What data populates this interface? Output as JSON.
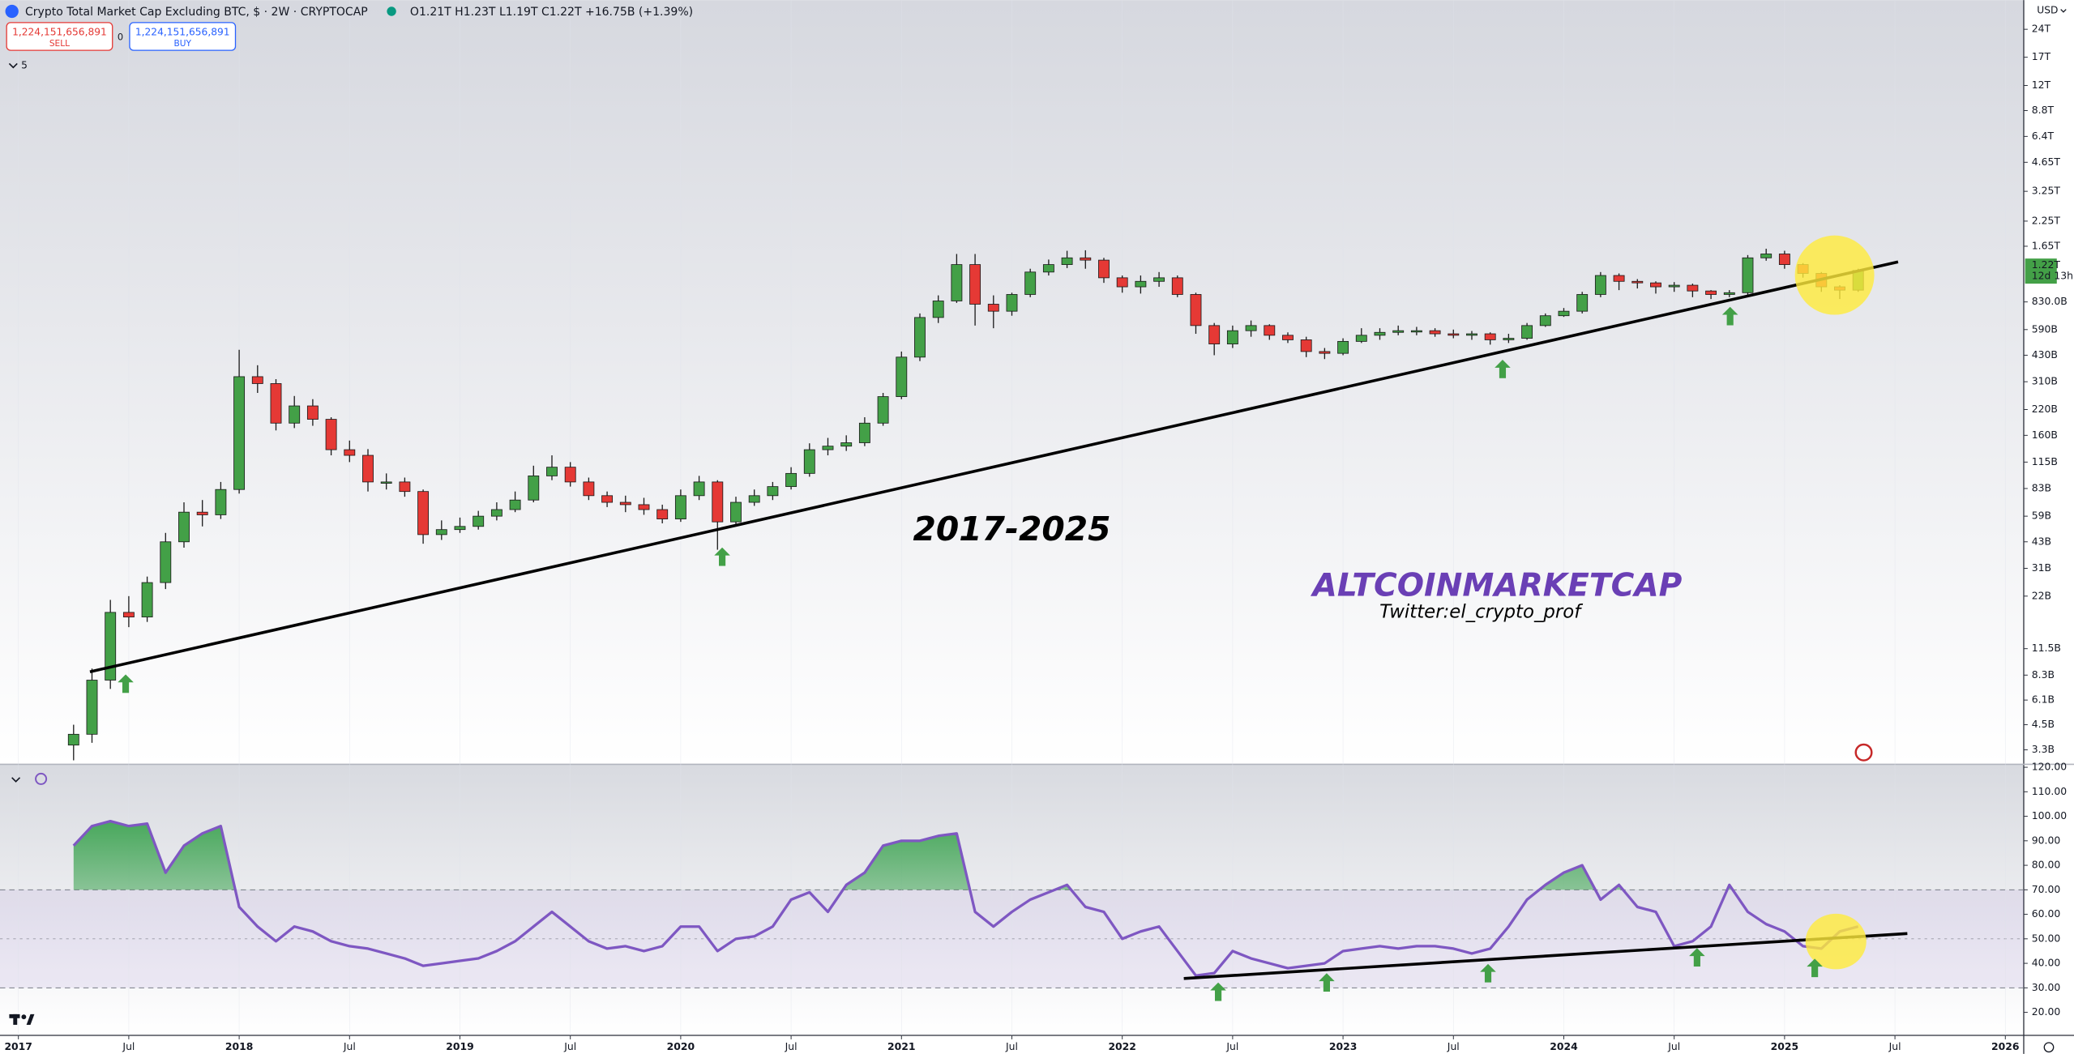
{
  "header": {
    "ohlc_legend": "O1.21T H1.23T L1.19T C1.22T +16.75B (+1.39%)",
    "collapse_count": "5",
    "currency": "USD"
  },
  "order_panel": {
    "sell_price": "1,224,151,656,891",
    "sell_label": "SELL",
    "spread": "0",
    "buy_price": "1,224,151,656,891",
    "buy_label": "BUY"
  },
  "chart_data": [
    {
      "type": "candlestick",
      "title": "Crypto Total Market Cap Excluding BTC, $ · 2W · CRYPTOCAP",
      "annotations": [
        "2017-2025",
        "ALTCOINMARKETCAP",
        "Twitter:el_crypto_prof"
      ],
      "last_price_label": "1.22T",
      "countdown": "12d 13h",
      "log_scale": true,
      "up_color": "#43a047",
      "down_color": "#e53935",
      "xlim": [
        "2016-12",
        "2026-02"
      ],
      "xticks": [
        {
          "value": "2017-01",
          "label": "2017"
        },
        {
          "value": "2017-07",
          "label": "Jul"
        },
        {
          "value": "2018-01",
          "label": "2018"
        },
        {
          "value": "2018-07",
          "label": "Jul"
        },
        {
          "value": "2019-01",
          "label": "2019"
        },
        {
          "value": "2019-07",
          "label": "Jul"
        },
        {
          "value": "2020-01",
          "label": "2020"
        },
        {
          "value": "2020-07",
          "label": "Jul"
        },
        {
          "value": "2021-01",
          "label": "2021"
        },
        {
          "value": "2021-07",
          "label": "Jul"
        },
        {
          "value": "2022-01",
          "label": "2022"
        },
        {
          "value": "2022-07",
          "label": "Jul"
        },
        {
          "value": "2023-01",
          "label": "2023"
        },
        {
          "value": "2023-07",
          "label": "Jul"
        },
        {
          "value": "2024-01",
          "label": "2024"
        },
        {
          "value": "2024-07",
          "label": "Jul"
        },
        {
          "value": "2025-01",
          "label": "2025"
        },
        {
          "value": "2025-07",
          "label": "Jul"
        },
        {
          "value": "2026-01",
          "label": "2026"
        }
      ],
      "ylim": [
        2.76,
        34400
      ],
      "yticks": [
        {
          "value": 24000,
          "label": "24T"
        },
        {
          "value": 17000,
          "label": "17T"
        },
        {
          "value": 12000,
          "label": "12T"
        },
        {
          "value": 8800,
          "label": "8.8T"
        },
        {
          "value": 6400,
          "label": "6.4T"
        },
        {
          "value": 4650,
          "label": "4.65T"
        },
        {
          "value": 3250,
          "label": "3.25T"
        },
        {
          "value": 2250,
          "label": "2.25T"
        },
        {
          "value": 1650,
          "label": "1.65T"
        },
        {
          "value": 830,
          "label": "830.0B"
        },
        {
          "value": 590,
          "label": "590B"
        },
        {
          "value": 430,
          "label": "430B"
        },
        {
          "value": 310,
          "label": "310B"
        },
        {
          "value": 220,
          "label": "220B"
        },
        {
          "value": 160,
          "label": "160B"
        },
        {
          "value": 115,
          "label": "115B"
        },
        {
          "value": 83,
          "label": "83B"
        },
        {
          "value": 59,
          "label": "59B"
        },
        {
          "value": 43,
          "label": "43B"
        },
        {
          "value": 31,
          "label": "31B"
        },
        {
          "value": 22,
          "label": "22B"
        },
        {
          "value": 11.5,
          "label": "11.5B"
        },
        {
          "value": 8.3,
          "label": "8.3B"
        },
        {
          "value": 6.1,
          "label": "6.1B"
        },
        {
          "value": 4.5,
          "label": "4.5B"
        },
        {
          "value": 3.3,
          "label": "3.3B"
        }
      ],
      "x": [
        "2017-04",
        "2017-05",
        "2017-06",
        "2017-07",
        "2017-08",
        "2017-09",
        "2017-10",
        "2017-11",
        "2017-12",
        "2018-01",
        "2018-02",
        "2018-03",
        "2018-04",
        "2018-05",
        "2018-06",
        "2018-07",
        "2018-08",
        "2018-09",
        "2018-10",
        "2018-11",
        "2018-12",
        "2019-01",
        "2019-02",
        "2019-03",
        "2019-04",
        "2019-05",
        "2019-06",
        "2019-07",
        "2019-08",
        "2019-09",
        "2019-10",
        "2019-11",
        "2019-12",
        "2020-01",
        "2020-02",
        "2020-03",
        "2020-04",
        "2020-05",
        "2020-06",
        "2020-07",
        "2020-08",
        "2020-09",
        "2020-10",
        "2020-11",
        "2020-12",
        "2021-01",
        "2021-02",
        "2021-03",
        "2021-04",
        "2021-05",
        "2021-06",
        "2021-07",
        "2021-08",
        "2021-09",
        "2021-10",
        "2021-11",
        "2021-12",
        "2022-01",
        "2022-02",
        "2022-03",
        "2022-04",
        "2022-05",
        "2022-06",
        "2022-07",
        "2022-08",
        "2022-09",
        "2022-10",
        "2022-11",
        "2022-12",
        "2023-01",
        "2023-02",
        "2023-03",
        "2023-04",
        "2023-05",
        "2023-06",
        "2023-07",
        "2023-08",
        "2023-09",
        "2023-10",
        "2023-11",
        "2023-12",
        "2024-01",
        "2024-02",
        "2024-03",
        "2024-04",
        "2024-05",
        "2024-06",
        "2024-07",
        "2024-08",
        "2024-09",
        "2024-10",
        "2024-11",
        "2024-12",
        "2025-01",
        "2025-02",
        "2025-03",
        "2025-04",
        "2025-05"
      ],
      "open": [
        3.5,
        4.0,
        7.8,
        18,
        17,
        26,
        43,
        62,
        60,
        82,
        330,
        303,
        186,
        230,
        195,
        134,
        125,
        90,
        90,
        80,
        47,
        50,
        52,
        59,
        64,
        72,
        97,
        108,
        90,
        76,
        70,
        68,
        64,
        57,
        76,
        90,
        55,
        70,
        76,
        85,
        100,
        134,
        140,
        146,
        186,
        258,
        420,
        685,
        840,
        1316,
        807,
        740,
        910,
        1200,
        1316,
        1430,
        1390,
        1118,
        1000,
        1070,
        1118,
        910,
        620,
        494,
        582,
        620,
        550,
        520,
        450,
        440,
        510,
        550,
        570,
        582,
        582,
        560,
        550,
        560,
        520,
        530,
        620,
        700,
        740,
        910,
        1150,
        1070,
        1050,
        1000,
        1020,
        950,
        910,
        930,
        1430,
        1500,
        1316,
        1180,
        1000,
        960
      ],
      "high": [
        4.5,
        9,
        21,
        22,
        28,
        48,
        70,
        72,
        90,
        460,
        380,
        320,
        260,
        250,
        200,
        150,
        135,
        100,
        95,
        82,
        56,
        58,
        63,
        70,
        80,
        110,
        125,
        115,
        95,
        80,
        76,
        74,
        68,
        82,
        97,
        92,
        75,
        82,
        90,
        108,
        145,
        155,
        160,
        200,
        270,
        450,
        720,
        900,
        1500,
        1500,
        900,
        930,
        1250,
        1400,
        1560,
        1570,
        1430,
        1150,
        1150,
        1200,
        1150,
        930,
        640,
        620,
        660,
        630,
        570,
        540,
        470,
        530,
        600,
        600,
        620,
        610,
        600,
        590,
        580,
        570,
        560,
        640,
        720,
        770,
        940,
        1200,
        1180,
        1100,
        1070,
        1060,
        1040,
        960,
        960,
        1480,
        1600,
        1560,
        1340,
        1200,
        1020,
        1250
      ],
      "low": [
        2.9,
        3.6,
        7.0,
        15,
        16,
        24,
        40,
        52,
        57,
        78,
        270,
        170,
        175,
        180,
        125,
        115,
        80,
        82,
        75,
        42,
        44,
        48,
        50,
        56,
        62,
        70,
        92,
        85,
        72,
        66,
        62,
        60,
        54,
        55,
        72,
        39,
        52,
        67,
        72,
        82,
        96,
        125,
        132,
        140,
        180,
        250,
        400,
        640,
        820,
        620,
        600,
        700,
        880,
        1150,
        1260,
        1250,
        1050,
        930,
        920,
        1000,
        880,
        560,
        430,
        470,
        540,
        520,
        500,
        420,
        410,
        430,
        500,
        520,
        550,
        550,
        540,
        530,
        520,
        490,
        500,
        520,
        610,
        690,
        720,
        880,
        960,
        980,
        920,
        940,
        880,
        860,
        880,
        900,
        1380,
        1250,
        1120,
        940,
        860,
        940
      ],
      "close": [
        4.0,
        7.8,
        18,
        17,
        26,
        43,
        62,
        60,
        82,
        330,
        303,
        186,
        230,
        195,
        134,
        125,
        90,
        90,
        80,
        47,
        50,
        52,
        59,
        64,
        72,
        97,
        108,
        90,
        76,
        70,
        68,
        64,
        57,
        76,
        90,
        55,
        70,
        76,
        85,
        100,
        134,
        140,
        146,
        186,
        258,
        420,
        685,
        840,
        1316,
        807,
        740,
        910,
        1200,
        1316,
        1430,
        1390,
        1118,
        1000,
        1070,
        1118,
        910,
        620,
        494,
        582,
        620,
        550,
        520,
        450,
        440,
        510,
        550,
        570,
        582,
        582,
        560,
        550,
        560,
        520,
        530,
        620,
        700,
        740,
        910,
        1150,
        1070,
        1050,
        1000,
        1020,
        950,
        910,
        930,
        1430,
        1500,
        1316,
        1180,
        1000,
        960,
        1224
      ]
    },
    {
      "type": "line",
      "color": "#7e57c2",
      "fill_color": "#4caf50",
      "band": [
        30,
        70
      ],
      "band_color": "#7e57c2",
      "midline": 50,
      "ylim": [
        10.6,
        121.2
      ],
      "yticks": [
        {
          "value": 120,
          "label": "120.00"
        },
        {
          "value": 110,
          "label": "110.00"
        },
        {
          "value": 100,
          "label": "100.00"
        },
        {
          "value": 90,
          "label": "90.00"
        },
        {
          "value": 80,
          "label": "80.00"
        },
        {
          "value": 70,
          "label": "70.00"
        },
        {
          "value": 60,
          "label": "60.00"
        },
        {
          "value": 50,
          "label": "50.00"
        },
        {
          "value": 40,
          "label": "40.00"
        },
        {
          "value": 30,
          "label": "30.00"
        },
        {
          "value": 20,
          "label": "20.00"
        }
      ],
      "values": [
        88,
        96,
        98,
        96,
        97,
        77,
        88,
        93,
        96,
        63,
        55,
        49,
        55,
        53,
        49,
        47,
        46,
        44,
        42,
        39,
        40,
        41,
        42,
        45,
        49,
        55,
        61,
        55,
        49,
        46,
        47,
        45,
        47,
        55,
        55,
        45,
        50,
        51,
        55,
        66,
        69,
        61,
        72,
        77,
        88,
        90,
        90,
        92,
        93,
        61,
        55,
        61,
        66,
        69,
        72,
        63,
        61,
        50,
        53,
        55,
        45,
        35,
        36,
        45,
        42,
        40,
        38,
        39,
        40,
        45,
        46,
        47,
        46,
        47,
        47,
        46,
        44,
        46,
        55,
        66,
        72,
        77,
        80,
        66,
        72,
        63,
        61,
        47,
        49,
        55,
        72,
        61,
        56,
        53,
        47,
        46,
        53,
        55
      ]
    }
  ]
}
